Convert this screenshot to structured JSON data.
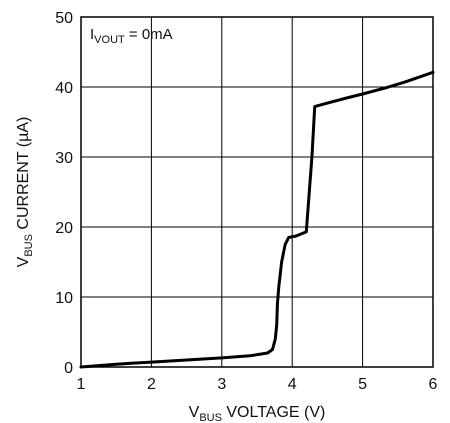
{
  "chart_data": {
    "type": "line",
    "title": "",
    "xlabel": {
      "main": "V",
      "sub": "BUS",
      "rest": " VOLTAGE (V)"
    },
    "ylabel": {
      "main": "V",
      "sub": "BUS",
      "rest": " CURRENT (µA)"
    },
    "xlim": [
      1,
      6
    ],
    "ylim": [
      0,
      50
    ],
    "x_ticks": [
      1,
      2,
      3,
      4,
      5,
      6
    ],
    "y_ticks": [
      0,
      10,
      20,
      30,
      40,
      50
    ],
    "x_tick_labels": [
      "1",
      "2",
      "3",
      "4",
      "5",
      "6"
    ],
    "y_tick_labels": [
      "0",
      "10",
      "20",
      "30",
      "40",
      "50"
    ],
    "grid": true,
    "annotation": {
      "main": "I",
      "sub": "VOUT",
      "rest": " = 0mA"
    },
    "series": [
      {
        "color": "#000000",
        "points": [
          [
            1.0,
            0.0
          ],
          [
            1.5,
            0.4
          ],
          [
            2.0,
            0.7
          ],
          [
            2.5,
            1.0
          ],
          [
            3.0,
            1.3
          ],
          [
            3.4,
            1.6
          ],
          [
            3.65,
            2.0
          ],
          [
            3.72,
            2.5
          ],
          [
            3.76,
            4.0
          ],
          [
            3.78,
            6.0
          ],
          [
            3.79,
            9.0
          ],
          [
            3.81,
            11.5
          ],
          [
            3.85,
            15.0
          ],
          [
            3.9,
            17.5
          ],
          [
            3.95,
            18.5
          ],
          [
            4.05,
            18.7
          ],
          [
            4.2,
            19.3
          ],
          [
            4.28,
            30.0
          ],
          [
            4.32,
            37.2
          ],
          [
            4.5,
            37.7
          ],
          [
            4.8,
            38.5
          ],
          [
            5.0,
            39.0
          ],
          [
            5.3,
            39.8
          ],
          [
            5.6,
            40.7
          ],
          [
            5.8,
            41.4
          ],
          [
            6.0,
            42.1
          ]
        ]
      }
    ]
  }
}
